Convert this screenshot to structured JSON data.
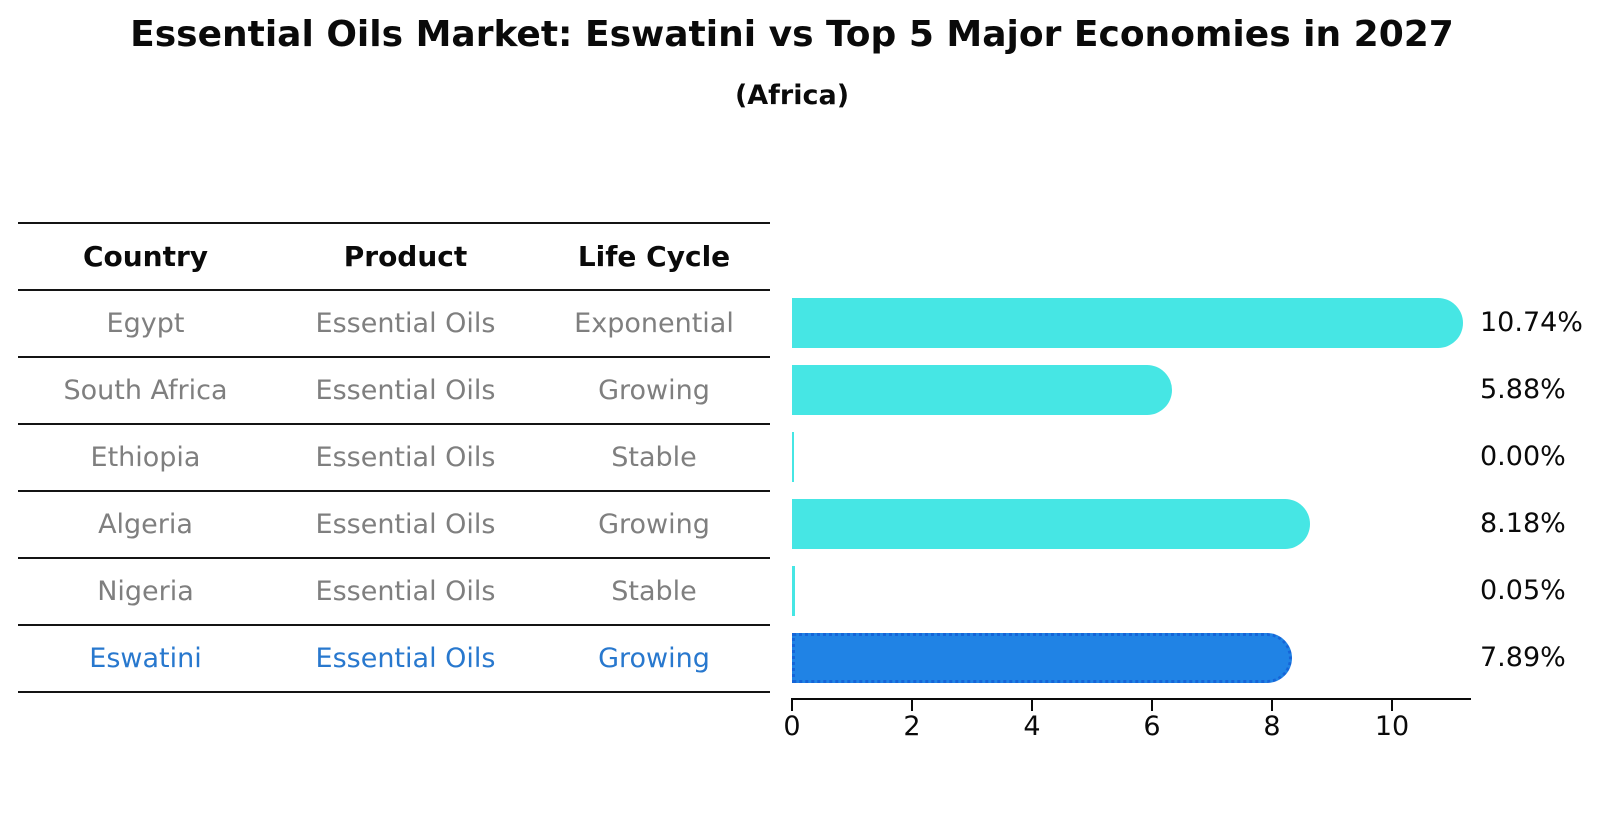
{
  "title": "Essential Oils Market: Eswatini vs Top 5 Major Economies in 2027",
  "subtitle": "(Africa)",
  "table": {
    "headers": [
      "Country",
      "Product",
      "Life Cycle"
    ],
    "rows": [
      {
        "country": "Egypt",
        "product": "Essential Oils",
        "life_cycle": "Exponential",
        "highlighted": false
      },
      {
        "country": "South Africa",
        "product": "Essential Oils",
        "life_cycle": "Growing",
        "highlighted": false
      },
      {
        "country": "Ethiopia",
        "product": "Essential Oils",
        "life_cycle": "Stable",
        "highlighted": false
      },
      {
        "country": "Algeria",
        "product": "Essential Oils",
        "life_cycle": "Growing",
        "highlighted": false
      },
      {
        "country": "Nigeria",
        "product": "Essential Oils",
        "life_cycle": "Stable",
        "highlighted": false
      },
      {
        "country": "Eswatini",
        "product": "Essential Oils",
        "life_cycle": "Growing",
        "highlighted": true
      }
    ]
  },
  "chart_data": {
    "type": "bar",
    "orientation": "horizontal",
    "title": "Essential Oils Market: Eswatini vs Top 5 Major Economies in 2027",
    "subtitle": "(Africa)",
    "categories": [
      "Egypt",
      "South Africa",
      "Ethiopia",
      "Algeria",
      "Nigeria",
      "Eswatini"
    ],
    "values": [
      10.74,
      5.88,
      0.0,
      8.18,
      0.05,
      7.89
    ],
    "value_labels": [
      "10.74%",
      "5.88%",
      "0.00%",
      "8.18%",
      "0.05%",
      "7.89%"
    ],
    "x_ticks": [
      0,
      2,
      4,
      6,
      8,
      10
    ],
    "xlim": [
      0,
      11.3
    ],
    "grid": false,
    "legend": false,
    "highlight_index": 5,
    "colors": {
      "bar_default": "#46e6e4",
      "bar_highlight": "#2083e5",
      "bar_highlight_border": "#1565d8",
      "highlight_text": "#2878ce",
      "table_text": "#7f7f7f",
      "axis_text": "#0a0a0a"
    }
  }
}
